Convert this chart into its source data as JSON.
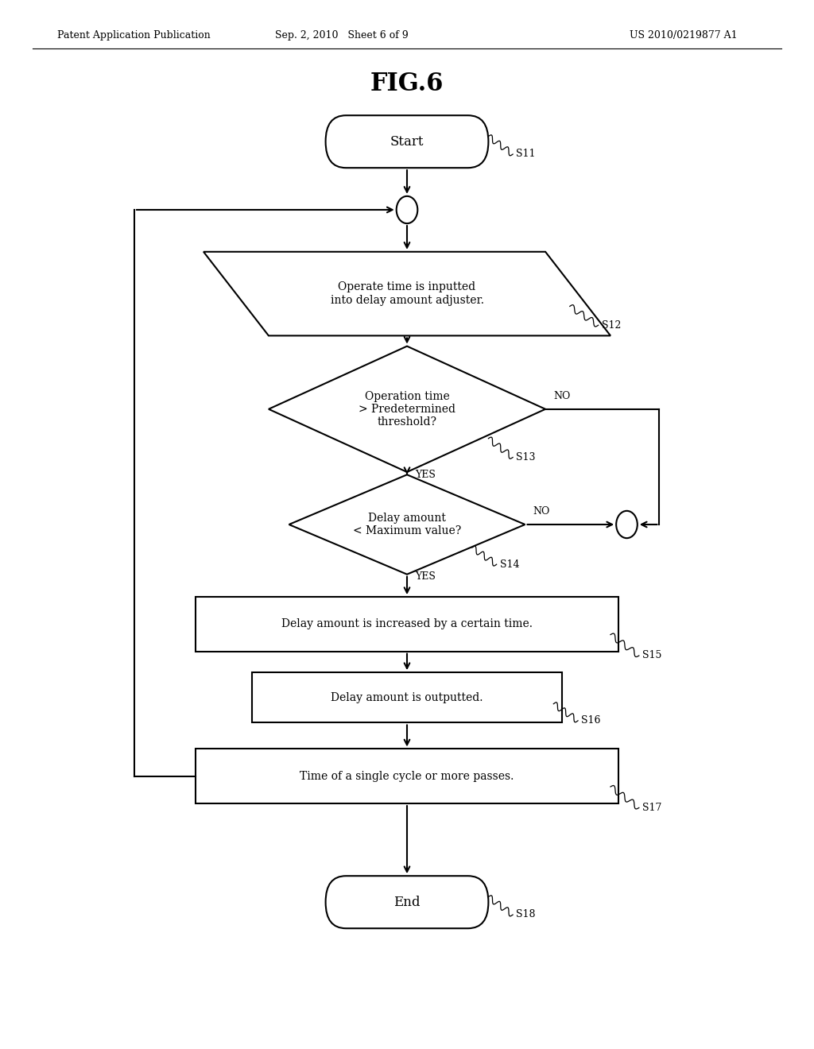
{
  "title": "FIG.6",
  "header_left": "Patent Application Publication",
  "header_mid": "Sep. 2, 2010   Sheet 6 of 9",
  "header_right": "US 2010/0219877 A1",
  "bg_color": "#ffffff",
  "lw": 1.5,
  "start_label": "Start",
  "s11_tag": "S11",
  "s12_label": "Operate time is inputted\ninto delay amount adjuster.",
  "s12_tag": "S12",
  "s13_label": "Operation time\n> Predetermined\nthreshold?",
  "s13_tag": "S13",
  "s13_no_label": "NO",
  "s13_yes_label": "YES",
  "s14_label": "Delay amount\n< Maximum value?",
  "s14_tag": "S14",
  "s14_no_label": "NO",
  "s14_yes_label": "YES",
  "s15_label": "Delay amount is increased by a certain time.",
  "s15_tag": "S15",
  "s16_label": "Delay amount is outputted.",
  "s16_tag": "S16",
  "s17_label": "Time of a single cycle or more passes.",
  "s17_tag": "S17",
  "end_label": "End",
  "s18_tag": "S18"
}
